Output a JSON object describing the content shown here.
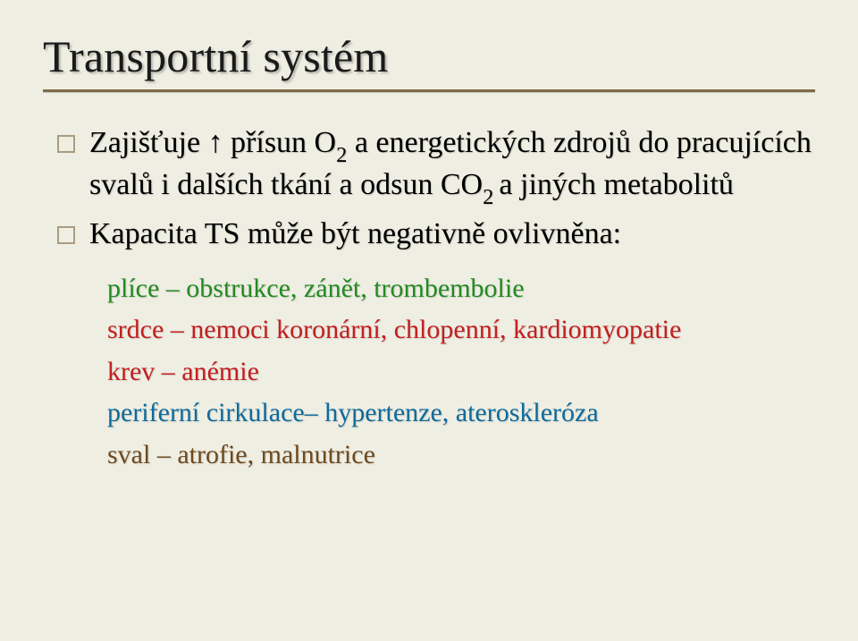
{
  "slide": {
    "background_color": "#efeee3",
    "rule_color": "#7d6b48",
    "marker_border_color": "#a99c7f",
    "title": "Transportní systém",
    "title_fontsize": 50,
    "title_color": "#1a1a1a",
    "items": [
      {
        "text_html": "Zajišťuje ↑ přísun O<sub>2</sub> a energetických zdrojů do pracujících svalů i dalších tkání a odsun CO<sub>2 </sub>a jiných metabolitů",
        "color": "#1a1a1a"
      },
      {
        "text_html": "Kapacita TS může být negativně ovlivněna:",
        "color": "#1a1a1a"
      }
    ],
    "item_fontsize": 34,
    "subitems": [
      {
        "text": "plíce – obstrukce, zánět, trombembolie",
        "color_class": "plice",
        "color": "#228a22"
      },
      {
        "text": "srdce – nemoci koronární, chlopenní, kardiomyopatie",
        "color_class": "srdce",
        "color": "#c21f1f"
      },
      {
        "text": "krev – anémie",
        "color_class": "krev",
        "color": "#c21f1f"
      },
      {
        "text": "periferní cirkulace– hypertenze, ateroskleróza",
        "color_class": "perif",
        "color": "#0d6b9c"
      },
      {
        "text": "sval – atrofie, malnutrice",
        "color_class": "sval",
        "color": "#6e4a1f"
      }
    ],
    "subitem_fontsize": 30
  }
}
